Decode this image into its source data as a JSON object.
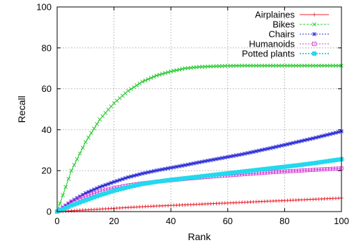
{
  "chart_data": {
    "type": "line",
    "xlabel": "Rank",
    "ylabel": "Recall",
    "xlim": [
      0,
      100
    ],
    "ylim": [
      0,
      100
    ],
    "xticks": [
      "0",
      "20",
      "40",
      "60",
      "80",
      "100"
    ],
    "yticks": [
      "0",
      "20",
      "40",
      "60",
      "80",
      "100"
    ],
    "grid": true,
    "legend_position": "top-right",
    "x": [
      0,
      5,
      10,
      15,
      20,
      25,
      30,
      35,
      40,
      45,
      50,
      55,
      60,
      65,
      70,
      75,
      80,
      85,
      90,
      95,
      100
    ],
    "series": [
      {
        "name": "Airplaines",
        "color": "#e8232e",
        "marker": "plus",
        "values": [
          0,
          0.4,
          0.8,
          1.2,
          1.6,
          2.0,
          2.4,
          2.7,
          3.0,
          3.3,
          3.6,
          3.9,
          4.2,
          4.5,
          4.8,
          5.1,
          5.4,
          5.7,
          6.0,
          6.3,
          6.6
        ]
      },
      {
        "name": "Bikes",
        "color": "#22c72a",
        "marker": "cross",
        "values": [
          0,
          20,
          34,
          45,
          53,
          59,
          63.5,
          66.5,
          68.5,
          70,
          70.7,
          71,
          71.2,
          71.3,
          71.3,
          71.3,
          71.3,
          71.3,
          71.3,
          71.3,
          71.3
        ]
      },
      {
        "name": "Chairs",
        "color": "#2a2ad9",
        "marker": "star",
        "values": [
          0,
          5,
          9,
          12,
          14.5,
          16.8,
          18.6,
          20.1,
          21.4,
          22.7,
          24.1,
          25.4,
          26.7,
          28.0,
          29.5,
          31.0,
          32.6,
          34.2,
          35.8,
          37.5,
          39.2
        ]
      },
      {
        "name": "Humanoids",
        "color": "#d63cd6",
        "marker": "square",
        "values": [
          0,
          4.5,
          7.5,
          9.8,
          11.5,
          12.8,
          13.8,
          14.6,
          15.3,
          16.0,
          16.6,
          17.2,
          17.7,
          18.2,
          18.7,
          19.2,
          19.6,
          20.0,
          20.4,
          20.8,
          21.1
        ]
      },
      {
        "name": "Potted plants",
        "color": "#22d9ee",
        "marker": "filled-square",
        "values": [
          0,
          3,
          5.5,
          8,
          10.2,
          12,
          13.5,
          14.6,
          15.5,
          16.3,
          17.1,
          17.9,
          18.7,
          19.5,
          20.3,
          21.1,
          21.9,
          22.7,
          23.6,
          24.6,
          25.6
        ]
      }
    ]
  }
}
